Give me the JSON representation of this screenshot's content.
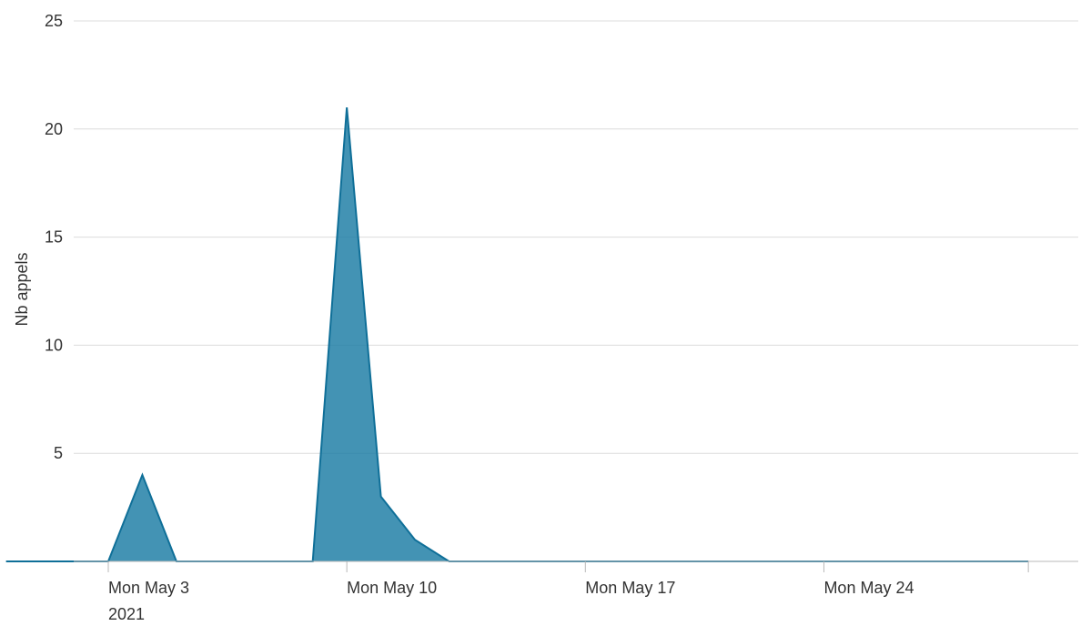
{
  "chart_data": {
    "type": "area",
    "title": "",
    "xlabel": "",
    "ylabel": "Nb appels",
    "ylim": [
      0,
      25
    ],
    "xlim": [
      "2021-04-30",
      "2021-05-30"
    ],
    "grid": true,
    "legend": "none",
    "color": "#1a7ba3",
    "y_ticks": [
      5,
      10,
      15,
      20,
      25
    ],
    "x_ticks": [
      {
        "date": "2021-05-03",
        "label": "Mon May 3",
        "sublabel": "2021"
      },
      {
        "date": "2021-05-10",
        "label": "Mon May 10",
        "sublabel": ""
      },
      {
        "date": "2021-05-17",
        "label": "Mon May 17",
        "sublabel": ""
      },
      {
        "date": "2021-05-24",
        "label": "Mon May 24",
        "sublabel": ""
      }
    ],
    "series": [
      {
        "x": [
          "2021-04-30",
          "2021-05-01",
          "2021-05-02",
          "2021-05-03",
          "2021-05-04",
          "2021-05-05",
          "2021-05-06",
          "2021-05-07",
          "2021-05-08",
          "2021-05-09",
          "2021-05-10",
          "2021-05-11",
          "2021-05-12",
          "2021-05-13",
          "2021-05-14",
          "2021-05-15",
          "2021-05-16",
          "2021-05-17",
          "2021-05-18",
          "2021-05-19",
          "2021-05-20",
          "2021-05-21",
          "2021-05-22",
          "2021-05-23",
          "2021-05-24",
          "2021-05-25",
          "2021-05-26",
          "2021-05-27",
          "2021-05-28",
          "2021-05-29",
          "2021-05-30"
        ],
        "values": [
          0,
          0,
          0,
          0,
          4,
          0,
          0,
          0,
          0,
          0,
          21,
          3,
          1,
          0,
          0,
          0,
          0,
          0,
          0,
          0,
          0,
          0,
          0,
          0,
          0,
          0,
          0,
          0,
          0,
          0,
          0
        ]
      }
    ]
  }
}
